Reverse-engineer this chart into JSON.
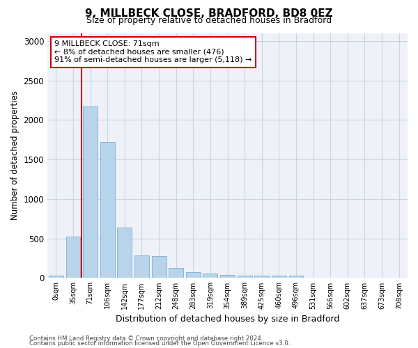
{
  "title": "9, MILLBECK CLOSE, BRADFORD, BD8 0EZ",
  "subtitle": "Size of property relative to detached houses in Bradford",
  "xlabel": "Distribution of detached houses by size in Bradford",
  "ylabel": "Number of detached properties",
  "categories": [
    "0sqm",
    "35sqm",
    "71sqm",
    "106sqm",
    "142sqm",
    "177sqm",
    "212sqm",
    "248sqm",
    "283sqm",
    "319sqm",
    "354sqm",
    "389sqm",
    "425sqm",
    "460sqm",
    "496sqm",
    "531sqm",
    "566sqm",
    "602sqm",
    "637sqm",
    "673sqm",
    "708sqm"
  ],
  "values": [
    30,
    520,
    2175,
    1720,
    640,
    285,
    280,
    130,
    75,
    55,
    35,
    30,
    30,
    30,
    30,
    8,
    5,
    3,
    2,
    1,
    1
  ],
  "bar_color": "#b8d4ea",
  "bar_edge_color": "#7aafd4",
  "vline_color": "#cc0000",
  "annotation_text": "9 MILLBECK CLOSE: 71sqm\n← 8% of detached houses are smaller (476)\n91% of semi-detached houses are larger (5,118) →",
  "annotation_box_color": "#ffffff",
  "annotation_box_edge": "#cc0000",
  "ylim": [
    0,
    3100
  ],
  "yticks": [
    0,
    500,
    1000,
    1500,
    2000,
    2500,
    3000
  ],
  "grid_color": "#c8d4e4",
  "bg_color": "#eef2f8",
  "footer1": "Contains HM Land Registry data © Crown copyright and database right 2024.",
  "footer2": "Contains public sector information licensed under the Open Government Licence v3.0."
}
